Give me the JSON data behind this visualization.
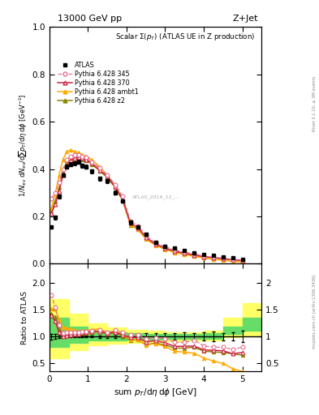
{
  "title_left": "13000 GeV pp",
  "title_right": "Z+Jet",
  "panel_title": "Scalar Σ(p_{T}) (ATLAS UE in Z production)",
  "right_label1": "Rivet 3.1.10, ≥ 3M events",
  "right_label2": "mcplots.cern.ch [arXiv:1306.3436]",
  "watermark": "ATLAS_2019_11_...",
  "atlas_x": [
    0.05,
    0.15,
    0.25,
    0.35,
    0.45,
    0.55,
    0.65,
    0.75,
    0.85,
    0.95,
    1.1,
    1.3,
    1.5,
    1.7,
    1.9,
    2.1,
    2.3,
    2.5,
    2.75,
    3.0,
    3.25,
    3.5,
    3.75,
    4.0,
    4.25,
    4.5,
    4.75,
    5.0
  ],
  "atlas_y": [
    0.155,
    0.195,
    0.285,
    0.375,
    0.41,
    0.42,
    0.425,
    0.43,
    0.415,
    0.41,
    0.39,
    0.36,
    0.35,
    0.3,
    0.265,
    0.175,
    0.155,
    0.125,
    0.09,
    0.075,
    0.065,
    0.055,
    0.045,
    0.04,
    0.035,
    0.03,
    0.025,
    0.02
  ],
  "atlas_yerr": [
    0.008,
    0.008,
    0.008,
    0.008,
    0.008,
    0.008,
    0.008,
    0.008,
    0.008,
    0.008,
    0.008,
    0.008,
    0.008,
    0.008,
    0.008,
    0.008,
    0.008,
    0.007,
    0.006,
    0.005,
    0.004,
    0.004,
    0.003,
    0.003,
    0.003,
    0.002,
    0.002,
    0.002
  ],
  "p345_x": [
    0.05,
    0.15,
    0.25,
    0.35,
    0.45,
    0.55,
    0.65,
    0.75,
    0.85,
    0.95,
    1.1,
    1.3,
    1.5,
    1.7,
    1.9,
    2.1,
    2.3,
    2.5,
    2.75,
    3.0,
    3.25,
    3.5,
    3.75,
    4.0,
    4.25,
    4.5,
    4.75,
    5.0
  ],
  "p345_y": [
    0.275,
    0.3,
    0.345,
    0.4,
    0.44,
    0.455,
    0.46,
    0.46,
    0.455,
    0.45,
    0.43,
    0.405,
    0.375,
    0.335,
    0.285,
    0.18,
    0.16,
    0.12,
    0.088,
    0.072,
    0.058,
    0.049,
    0.042,
    0.033,
    0.028,
    0.024,
    0.019,
    0.016
  ],
  "p370_x": [
    0.05,
    0.15,
    0.25,
    0.35,
    0.45,
    0.55,
    0.65,
    0.75,
    0.85,
    0.95,
    1.1,
    1.3,
    1.5,
    1.7,
    1.9,
    2.1,
    2.3,
    2.5,
    2.75,
    3.0,
    3.25,
    3.5,
    3.75,
    4.0,
    4.25,
    4.5,
    4.75,
    5.0
  ],
  "p370_y": [
    0.215,
    0.25,
    0.305,
    0.375,
    0.415,
    0.435,
    0.445,
    0.45,
    0.445,
    0.44,
    0.425,
    0.395,
    0.37,
    0.325,
    0.272,
    0.172,
    0.152,
    0.112,
    0.083,
    0.066,
    0.053,
    0.045,
    0.037,
    0.03,
    0.026,
    0.022,
    0.017,
    0.014
  ],
  "pambt1_x": [
    0.05,
    0.15,
    0.25,
    0.35,
    0.45,
    0.55,
    0.65,
    0.75,
    0.85,
    0.95,
    1.1,
    1.3,
    1.5,
    1.7,
    1.9,
    2.1,
    2.3,
    2.5,
    2.75,
    3.0,
    3.25,
    3.5,
    3.75,
    4.0,
    4.25,
    4.5,
    4.75,
    5.0
  ],
  "pambt1_y": [
    0.235,
    0.295,
    0.375,
    0.44,
    0.475,
    0.48,
    0.475,
    0.47,
    0.46,
    0.455,
    0.44,
    0.41,
    0.375,
    0.33,
    0.272,
    0.165,
    0.145,
    0.105,
    0.078,
    0.061,
    0.047,
    0.039,
    0.031,
    0.024,
    0.019,
    0.015,
    0.01,
    0.007
  ],
  "pz2_x": [
    0.05,
    0.15,
    0.25,
    0.35,
    0.45,
    0.55,
    0.65,
    0.75,
    0.85,
    0.95,
    1.1,
    1.3,
    1.5,
    1.7,
    1.9,
    2.1,
    2.3,
    2.5,
    2.75,
    3.0,
    3.25,
    3.5,
    3.75,
    4.0,
    4.25,
    4.5,
    4.75,
    5.0
  ],
  "pz2_y": [
    0.22,
    0.265,
    0.322,
    0.385,
    0.425,
    0.44,
    0.445,
    0.448,
    0.44,
    0.436,
    0.42,
    0.393,
    0.364,
    0.322,
    0.267,
    0.163,
    0.145,
    0.106,
    0.079,
    0.063,
    0.051,
    0.043,
    0.036,
    0.029,
    0.025,
    0.021,
    0.017,
    0.013
  ],
  "band_edges": [
    0.0,
    0.5,
    1.0,
    1.5,
    2.0,
    2.5,
    3.0,
    3.5,
    4.0,
    4.5,
    5.0,
    5.5
  ],
  "green_lo": [
    0.8,
    0.88,
    0.92,
    0.93,
    0.94,
    0.94,
    0.95,
    0.95,
    0.96,
    1.05,
    1.1
  ],
  "green_hi": [
    1.35,
    1.18,
    1.1,
    1.07,
    1.06,
    1.05,
    1.04,
    1.04,
    1.06,
    1.18,
    1.35
  ],
  "yellow_lo": [
    0.6,
    0.75,
    0.83,
    0.86,
    0.88,
    0.9,
    0.91,
    0.92,
    0.93,
    0.98,
    1.02
  ],
  "yellow_hi": [
    1.7,
    1.42,
    1.24,
    1.16,
    1.12,
    1.1,
    1.08,
    1.07,
    1.1,
    1.35,
    1.62
  ],
  "color_345": "#e87090",
  "color_370": "#cc2244",
  "color_ambt1": "#ffaa00",
  "color_z2": "#888800",
  "xlim": [
    0.0,
    5.5
  ],
  "ylim_main": [
    0.0,
    1.0
  ],
  "ylim_ratio": [
    0.35,
    2.35
  ],
  "yticks_main": [
    0.0,
    0.2,
    0.4,
    0.6,
    0.8,
    1.0
  ],
  "yticks_ratio": [
    0.5,
    1.0,
    1.5,
    2.0
  ]
}
